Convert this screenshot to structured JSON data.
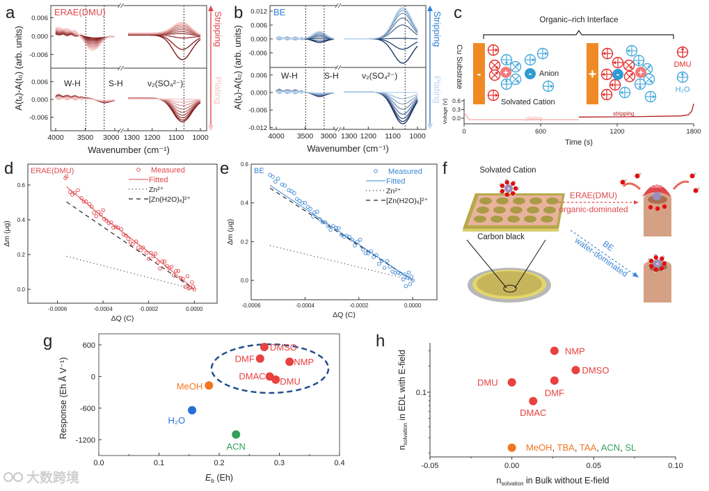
{
  "panel_letters": [
    "a",
    "b",
    "c",
    "d",
    "e",
    "f",
    "g",
    "h"
  ],
  "watermark": "大数跨境",
  "chart_data": [
    {
      "panel": "a",
      "type": "line",
      "title": "ERAE(DMU)",
      "xlabel": "Wavenumber (cm⁻¹)",
      "ylabel": "A(tₓ)-A(t₀) (arb. units)",
      "x_ticks_left": [
        4000,
        3500,
        3000
      ],
      "x_ticks_right": [
        1300,
        1200,
        1100,
        1000
      ],
      "y_ticks_top": [
        0.006,
        0.0,
        -0.006
      ],
      "y_ticks_bottom": [
        0.006,
        0.0,
        -0.006
      ],
      "annotations": [
        "W-H",
        "S-H",
        "ν₂(SO₄²⁻)"
      ],
      "vlines": [
        3490,
        3180,
        1068
      ],
      "arrow_labels": {
        "top": "Stripping",
        "bottom": "Plating"
      },
      "colors": {
        "dark": "#7a0a0a",
        "light": "#f7c4c4",
        "accent": "#e0474c"
      },
      "stripping": [
        {
          "wh": -0.0008,
          "sh": -0.0003,
          "so4": -0.0078,
          "base": 0.0008
        },
        {
          "wh": -0.0012,
          "sh": -0.0003,
          "so4": -0.0045,
          "base": 0.0009
        },
        {
          "wh": -0.0016,
          "sh": -0.0002,
          "so4": -0.0008,
          "base": 0.001
        },
        {
          "wh": -0.002,
          "sh": -0.0002,
          "so4": 0.0006,
          "base": 0.0012
        },
        {
          "wh": -0.0025,
          "sh": -0.0001,
          "so4": 0.0012,
          "base": 0.0014
        },
        {
          "wh": -0.003,
          "sh": 0.0,
          "so4": 0.0018,
          "base": 0.0016
        },
        {
          "wh": -0.0035,
          "sh": 0.0,
          "so4": 0.0023,
          "base": 0.0018
        },
        {
          "wh": -0.004,
          "sh": 0.0,
          "so4": 0.0028,
          "base": 0.002
        },
        {
          "wh": -0.0045,
          "sh": 0.0,
          "so4": 0.0032,
          "base": 0.0022
        },
        {
          "wh": -0.005,
          "sh": 0.0,
          "so4": 0.0036,
          "base": 0.0024
        },
        {
          "wh": -0.0056,
          "sh": 0.0,
          "so4": 0.004,
          "base": 0.0026
        }
      ],
      "plating": [
        {
          "wh": 0.0,
          "sh": -0.0013,
          "so4": -0.0078,
          "base": 0.0012
        },
        {
          "wh": 0.0,
          "sh": -0.0013,
          "so4": -0.0072,
          "base": 0.0011
        },
        {
          "wh": 0.0,
          "sh": -0.0012,
          "so4": -0.0064,
          "base": 0.001
        },
        {
          "wh": 0.0,
          "sh": -0.0011,
          "so4": -0.0055,
          "base": 0.0009
        },
        {
          "wh": 0.0,
          "sh": -0.001,
          "so4": -0.0045,
          "base": 0.0008
        },
        {
          "wh": 0.0,
          "sh": -0.0009,
          "so4": -0.0034,
          "base": 0.0007
        },
        {
          "wh": 0.0,
          "sh": -0.0008,
          "so4": -0.0022,
          "base": 0.0006
        },
        {
          "wh": 0.0,
          "sh": -0.0006,
          "so4": -0.0011,
          "base": 0.0005
        },
        {
          "wh": 0.0,
          "sh": -0.0004,
          "so4": 0.0,
          "base": 0.0004
        }
      ]
    },
    {
      "panel": "b",
      "type": "line",
      "title": "BE",
      "xlabel": "Wavenumber (cm⁻¹)",
      "ylabel": "A(tₓ)-A(t₀) (arb. units)",
      "x_ticks_left": [
        4000,
        3500,
        3000
      ],
      "x_ticks_right": [
        1300,
        1200,
        1100,
        1000
      ],
      "y_ticks_top": [
        0.012,
        0.006,
        0.0,
        -0.006
      ],
      "y_ticks_bottom": [
        0.006,
        0.0,
        -0.006,
        -0.012
      ],
      "annotations": [
        "W-H",
        "S-H",
        "ν₂(SO₄²⁻)"
      ],
      "vlines": [
        3490,
        3170,
        1050
      ],
      "arrow_labels": {
        "top": "Stripping",
        "bottom": "Plating"
      },
      "colors": {
        "dark": "#0b2a5c",
        "light": "#b9d5f2",
        "accent": "#2f7fd6"
      },
      "stripping": [
        {
          "wh": 0.0,
          "sh": -0.0016,
          "so4": -0.0105,
          "base": 0.0003
        },
        {
          "wh": 0.0,
          "sh": -0.001,
          "so4": -0.0045,
          "base": 0.0003
        },
        {
          "wh": 0.0,
          "sh": 0.0,
          "so4": 0.0002,
          "base": 0.0003
        },
        {
          "wh": 0.0,
          "sh": 0.0008,
          "so4": 0.006,
          "base": 0.0003
        },
        {
          "wh": 0.0,
          "sh": 0.0014,
          "so4": 0.009,
          "base": 0.0003
        },
        {
          "wh": 0.0,
          "sh": 0.0019,
          "so4": 0.011,
          "base": 0.0003
        },
        {
          "wh": 0.0,
          "sh": 0.0024,
          "so4": 0.0122,
          "base": 0.0003
        },
        {
          "wh": 0.0,
          "sh": 0.0028,
          "so4": 0.013,
          "base": 0.0003
        },
        {
          "wh": 0.0,
          "sh": 0.0032,
          "so4": 0.0136,
          "base": 0.0003
        }
      ],
      "plating": [
        {
          "wh": 0.0,
          "sh": -0.0015,
          "so4": -0.0108,
          "base": 0.0005
        },
        {
          "wh": 0.0,
          "sh": -0.0014,
          "so4": -0.01,
          "base": 0.0005
        },
        {
          "wh": 0.0,
          "sh": -0.0013,
          "so4": -0.009,
          "base": 0.0005
        },
        {
          "wh": 0.0,
          "sh": -0.0011,
          "so4": -0.0075,
          "base": 0.0004
        },
        {
          "wh": 0.0,
          "sh": -0.0009,
          "so4": -0.0058,
          "base": 0.0004
        },
        {
          "wh": 0.0,
          "sh": -0.0007,
          "so4": -0.004,
          "base": 0.0003
        },
        {
          "wh": 0.0,
          "sh": -0.0005,
          "so4": -0.0022,
          "base": 0.0003
        },
        {
          "wh": 0.0,
          "sh": -0.0002,
          "so4": 0.0,
          "base": 0.0002
        }
      ]
    },
    {
      "panel": "c",
      "type": "line",
      "xlabel": "Time (s)",
      "ylabel": "Voltage (V)",
      "x_ticks": [
        0,
        600,
        1200,
        1800
      ],
      "y_ticks": [
        0.6,
        0.3,
        0.0
      ],
      "series": [
        {
          "name": "plating",
          "color": "#f4a7a7",
          "points": [
            [
              0,
              0.2
            ],
            [
              40,
              -0.05
            ],
            [
              900,
              -0.05
            ]
          ]
        },
        {
          "name": "stripping",
          "color": "#b01c1c",
          "points": [
            [
              900,
              0.04
            ],
            [
              1300,
              0.05
            ],
            [
              1700,
              0.08
            ],
            [
              1760,
              0.12
            ],
            [
              1785,
              0.25
            ],
            [
              1800,
              0.5
            ]
          ]
        }
      ]
    },
    {
      "panel": "d",
      "type": "scatter",
      "title": "ERAE(DMU)",
      "xlabel": "ΔQ (C)",
      "ylabel": "Δm (μg)",
      "x_ticks": [
        -0.0006,
        -0.0004,
        -0.0002,
        0.0
      ],
      "y_ticks": [
        0.0,
        0.2,
        0.4,
        0.6
      ],
      "xlim": [
        -0.00073,
        0.0001
      ],
      "ylim": [
        -0.08,
        0.72
      ],
      "color": "#e0474c",
      "legend": [
        "Measured",
        "Fitted",
        "Zn²⁺",
        "[Zn(H2O)₆]²⁺"
      ],
      "measured": [
        [
          -0.000565,
          0.64
        ],
        [
          -0.00056,
          0.65
        ],
        [
          -0.000545,
          0.56
        ],
        [
          -0.000535,
          0.545
        ],
        [
          -0.000525,
          0.555
        ],
        [
          -0.00051,
          0.57
        ],
        [
          -0.000495,
          0.525
        ],
        [
          -0.000485,
          0.505
        ],
        [
          -0.000475,
          0.505
        ],
        [
          -0.00046,
          0.49
        ],
        [
          -0.00045,
          0.475
        ],
        [
          -0.00044,
          0.44
        ],
        [
          -0.00043,
          0.42
        ],
        [
          -0.00042,
          0.445
        ],
        [
          -0.00041,
          0.43
        ],
        [
          -0.0004,
          0.455
        ],
        [
          -0.000395,
          0.405
        ],
        [
          -0.000385,
          0.395
        ],
        [
          -0.000375,
          0.38
        ],
        [
          -0.000365,
          0.385
        ],
        [
          -0.000355,
          0.355
        ],
        [
          -0.000345,
          0.36
        ],
        [
          -0.000335,
          0.355
        ],
        [
          -0.00032,
          0.345
        ],
        [
          -0.00031,
          0.315
        ],
        [
          -0.0003,
          0.31
        ],
        [
          -0.00029,
          0.29
        ],
        [
          -0.00028,
          0.27
        ],
        [
          -0.00027,
          0.26
        ],
        [
          -0.000255,
          0.275
        ],
        [
          -0.000245,
          0.24
        ],
        [
          -0.000235,
          0.225
        ],
        [
          -0.000225,
          0.24
        ],
        [
          -0.00021,
          0.21
        ],
        [
          -0.0002,
          0.175
        ],
        [
          -0.00019,
          0.21
        ],
        [
          -0.00018,
          0.19
        ],
        [
          -0.00017,
          0.205
        ],
        [
          -0.00016,
          0.155
        ],
        [
          -0.00015,
          0.12
        ],
        [
          -0.00014,
          0.16
        ],
        [
          -0.00013,
          0.16
        ],
        [
          -0.00012,
          0.135
        ],
        [
          -0.00011,
          0.12
        ],
        [
          -0.0001,
          0.13
        ],
        [
          -9e-05,
          0.08
        ],
        [
          -8e-05,
          0.105
        ],
        [
          -7e-05,
          0.105
        ],
        [
          -6e-05,
          0.065
        ],
        [
          -5e-05,
          0.06
        ],
        [
          -4e-05,
          0.015
        ],
        [
          -3e-05,
          0.075
        ],
        [
          -2.5e-05,
          0.005
        ],
        [
          -2e-05,
          0.01
        ],
        [
          -1e-05,
          0.04
        ],
        [
          -5e-06,
          0.015
        ],
        [
          0.0,
          0.0
        ]
      ],
      "fitted": [
        [
          -0.00056,
          0.59
        ],
        [
          -0.0004,
          0.415
        ],
        [
          -0.0002,
          0.215
        ],
        [
          0.0,
          0.0
        ]
      ],
      "zn": [
        [
          -0.00056,
          0.19
        ],
        [
          0.0,
          0.0
        ]
      ],
      "zn_h2o6": [
        [
          -0.00056,
          0.503
        ],
        [
          0.0,
          0.0
        ]
      ]
    },
    {
      "panel": "e",
      "type": "scatter",
      "title": "BE",
      "xlabel": "ΔQ (C)",
      "ylabel": "Δm (μg)",
      "x_ticks": [
        -0.0006,
        -0.0004,
        -0.0002,
        0.0
      ],
      "y_ticks": [
        0.0,
        0.2,
        0.4,
        0.6
      ],
      "xlim": [
        -0.0006,
        9e-05
      ],
      "ylim": [
        -0.1,
        0.6
      ],
      "color": "#3a86d4",
      "legend": [
        "Measured",
        "Fitted",
        "Zn²⁺",
        "[Zn(H2O)₆]²⁺"
      ],
      "measured": [
        [
          -0.00053,
          0.545
        ],
        [
          -0.00052,
          0.535
        ],
        [
          -0.00051,
          0.51
        ],
        [
          -0.0005,
          0.525
        ],
        [
          -0.000485,
          0.495
        ],
        [
          -0.000475,
          0.49
        ],
        [
          -0.00046,
          0.465
        ],
        [
          -0.00045,
          0.46
        ],
        [
          -0.00044,
          0.45
        ],
        [
          -0.00043,
          0.42
        ],
        [
          -0.00042,
          0.41
        ],
        [
          -0.00041,
          0.4
        ],
        [
          -0.0004,
          0.4
        ],
        [
          -0.00039,
          0.38
        ],
        [
          -0.00038,
          0.37
        ],
        [
          -0.00037,
          0.33
        ],
        [
          -0.000365,
          0.35
        ],
        [
          -0.000355,
          0.355
        ],
        [
          -0.000345,
          0.315
        ],
        [
          -0.000335,
          0.3
        ],
        [
          -0.000325,
          0.3
        ],
        [
          -0.000315,
          0.28
        ],
        [
          -0.000305,
          0.26
        ],
        [
          -0.000295,
          0.28
        ],
        [
          -0.000285,
          0.27
        ],
        [
          -0.000275,
          0.27
        ],
        [
          -0.000265,
          0.235
        ],
        [
          -0.000255,
          0.225
        ],
        [
          -0.000245,
          0.23
        ],
        [
          -0.000235,
          0.225
        ],
        [
          -0.000225,
          0.21
        ],
        [
          -0.000215,
          0.18
        ],
        [
          -0.000205,
          0.2
        ],
        [
          -0.000195,
          0.21
        ],
        [
          -0.000185,
          0.16
        ],
        [
          -0.000175,
          0.14
        ],
        [
          -0.000165,
          0.14
        ],
        [
          -0.000155,
          0.15
        ],
        [
          -0.000145,
          0.12
        ],
        [
          -0.000135,
          0.13
        ],
        [
          -0.000125,
          0.085
        ],
        [
          -0.000115,
          0.1
        ],
        [
          -0.000105,
          0.065
        ],
        [
          -9.5e-05,
          0.1
        ],
        [
          -8.5e-05,
          0.07
        ],
        [
          -7.5e-05,
          0.045
        ],
        [
          -6.5e-05,
          0.04
        ],
        [
          -5.5e-05,
          0.04
        ],
        [
          -4.5e-05,
          0.035
        ],
        [
          -3.5e-05,
          0.005
        ],
        [
          -3e-05,
          0.03
        ],
        [
          -2.5e-05,
          -0.03
        ],
        [
          -2e-05,
          0.015
        ],
        [
          -1.5e-05,
          0.04
        ],
        [
          -1e-05,
          -0.02
        ],
        [
          -5e-06,
          0.02
        ],
        [
          0.0,
          0.0
        ]
      ],
      "fitted": [
        [
          -0.00053,
          0.49
        ],
        [
          0.0,
          0.0
        ]
      ],
      "zn": [
        [
          -0.00053,
          0.18
        ],
        [
          0.0,
          0.0
        ]
      ],
      "zn_h2o6": [
        [
          -0.00053,
          0.476
        ],
        [
          0.0,
          0.0
        ]
      ]
    },
    {
      "panel": "g",
      "type": "scatter",
      "xlabel_main": "E",
      "xlabel_sub": "b",
      "xlabel_rest": " (Eh)",
      "ylabel": "Response (Eh Å V⁻¹)",
      "x_ticks": [
        0.0,
        0.1,
        0.2,
        0.3,
        0.4
      ],
      "y_ticks": [
        600,
        0,
        -600,
        -1200
      ],
      "xlim": [
        0.0,
        0.4
      ],
      "ylim": [
        -1500,
        810
      ],
      "points": [
        {
          "label": "DMSO",
          "x": 0.275,
          "y": 560,
          "color": "#e8413f"
        },
        {
          "label": "DMF",
          "x": 0.268,
          "y": 340,
          "color": "#e8413f"
        },
        {
          "label": "NMP",
          "x": 0.317,
          "y": 280,
          "color": "#e8413f"
        },
        {
          "label": "DMAC",
          "x": 0.284,
          "y": 0,
          "color": "#e8413f"
        },
        {
          "label": "DMU",
          "x": 0.294,
          "y": -60,
          "color": "#e8413f"
        },
        {
          "label": "MeOH",
          "x": 0.183,
          "y": -170,
          "color": "#f27521"
        },
        {
          "label": "H₂O",
          "x": 0.155,
          "y": -640,
          "color": "#2270d8"
        },
        {
          "label": "ACN",
          "x": 0.228,
          "y": -1100,
          "color": "#2fa05a"
        }
      ],
      "ellipse_color": "#1f4e8c"
    },
    {
      "panel": "h",
      "type": "scatter",
      "xlabel_main": "n",
      "xlabel_sub": "solvation",
      "xlabel_rest": " in Bulk without E-field",
      "ylabel_main": "n",
      "ylabel_sub": "solvation",
      "ylabel_rest": " in EDL with E-field",
      "x_ticks": [
        -0.05,
        0.0,
        0.05,
        0.1
      ],
      "y_ticks": [
        0.1
      ],
      "y_scale": "log",
      "xlim": [
        -0.05,
        0.1
      ],
      "ylim": [
        0.018,
        0.37
      ],
      "points": [
        {
          "label": "NMP",
          "x": 0.026,
          "y": 0.3,
          "color": "#e8413f"
        },
        {
          "label": "DMSO",
          "x": 0.039,
          "y": 0.18,
          "color": "#e8413f"
        },
        {
          "label": "DMF",
          "x": 0.026,
          "y": 0.136,
          "color": "#e8413f"
        },
        {
          "label": "DMU",
          "x": 0.0,
          "y": 0.13,
          "color": "#e8413f"
        },
        {
          "label": "DMAC",
          "x": 0.013,
          "y": 0.079,
          "color": "#e8413f"
        },
        {
          "label": "",
          "x": 0.0,
          "y": 0.023,
          "color": "#f27521"
        }
      ],
      "group_label": [
        {
          "text": "MeOH",
          "color": "#f27521"
        },
        {
          "text": ", ",
          "color": "#333333"
        },
        {
          "text": "TBA",
          "color": "#f27521"
        },
        {
          "text": ", ",
          "color": "#333333"
        },
        {
          "text": "TAA",
          "color": "#f27521"
        },
        {
          "text": ", ",
          "color": "#333333"
        },
        {
          "text": "ACN",
          "color": "#2fa05a"
        },
        {
          "text": ", ",
          "color": "#333333"
        },
        {
          "text": "SL",
          "color": "#2fa05a"
        }
      ]
    }
  ],
  "schematic_c": {
    "title": "Organic–rich Interface",
    "substrate": "Cu Substrate",
    "minus": "-",
    "plus": "+",
    "anion": "Anion",
    "solvated_cation": "Solvated Cation",
    "dmu": "DMU",
    "h2o": "H₂O",
    "plating": "plating",
    "stripping": "stripping"
  },
  "schematic_f": {
    "solvated_cation": "Solvated Cation",
    "carbon_black": "Carbon black",
    "erae": "ERAE(DMU)",
    "organic": "organic-dominated",
    "be": "BE",
    "water": "water-dominated",
    "dmu_cap": "DMU"
  }
}
